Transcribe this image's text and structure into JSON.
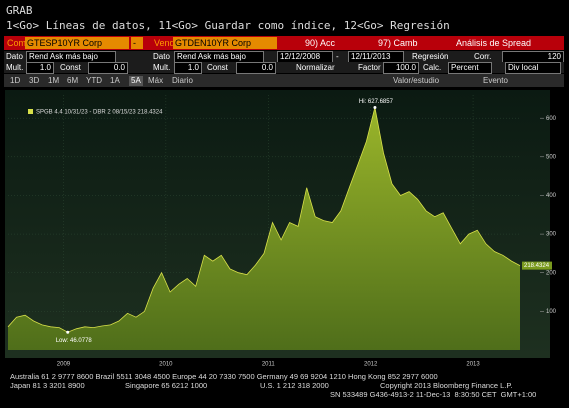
{
  "header": {
    "title": "GRAB",
    "hint": "1<Go> Líneas de datos, 11<Go> Guardar como índice, 12<Go> Regresión"
  },
  "toolbar": {
    "comp_label": "Comp",
    "comp_value": "GTESP10YR Corp",
    "dash": "-",
    "vend_label": "Vend",
    "vend_value": "GTDEN10YR Corp",
    "button_acc": "90) Acc",
    "button_camb": "97) Camb",
    "title": "Análisis de Spread"
  },
  "settings": {
    "dato1_label": "Dato",
    "dato1_value": "Rend Ask más bajo",
    "dato2_label": "Dato",
    "dato2_value": "Rend Ask más bajo",
    "start_date": "12/12/2008",
    "date_dash": "-",
    "end_date": "12/11/2013",
    "regresion": "Regresión",
    "corr": "Corr.",
    "corr_value": "120",
    "mult1_label": "Mult.",
    "mult1_value": "1.0",
    "const1_label": "Const",
    "const1_value": "0.0",
    "mult2_label": "Mult.",
    "mult2_value": "1.0",
    "const2_label": "Const",
    "const2_value": "0.0",
    "normalizar": "Normalizar",
    "factor_label": "Factor",
    "factor_value": "100.0",
    "calc_label": "Calc.",
    "calc_value": "Percent",
    "div_local": "Div local"
  },
  "tabs": [
    "1D",
    "3D",
    "1M",
    "6M",
    "YTD",
    "1A",
    "5A",
    "Máx",
    "Diario"
  ],
  "tab_right": [
    "Valor/estudio",
    "Evento"
  ],
  "chart": {
    "type": "area",
    "legend": "SPGB 4.4 10/31/23 - DBR 2 08/15/23 218.4324",
    "color": "#7a9a1e",
    "line_color": "#d8e04a",
    "values": [
      60,
      85,
      90,
      75,
      65,
      60,
      58,
      46.0778,
      55,
      60,
      58,
      62,
      65,
      75,
      95,
      85,
      100,
      160,
      200,
      150,
      170,
      185,
      165,
      245,
      230,
      245,
      210,
      200,
      195,
      220,
      250,
      330,
      285,
      330,
      320,
      420,
      345,
      335,
      330,
      360,
      420,
      480,
      540,
      627.6857,
      510,
      430,
      400,
      410,
      390,
      360,
      345,
      355,
      315,
      275,
      300,
      310,
      275,
      255,
      245,
      230,
      218.4324
    ],
    "last_label": "218.4324",
    "high": {
      "index": 43,
      "label": "Hi: 627.6857"
    },
    "low": {
      "index": 7,
      "label": "Low: 46.0778"
    },
    "xlim": [
      0,
      60
    ],
    "xticks": [
      {
        "value": 6.5,
        "label": "2009"
      },
      {
        "value": 18.5,
        "label": "2010"
      },
      {
        "value": 30.5,
        "label": "2011"
      },
      {
        "value": 42.5,
        "label": "2012"
      },
      {
        "value": 54.5,
        "label": "2013"
      }
    ],
    "ylim": [
      0,
      660
    ],
    "yticks": [
      100,
      200,
      300,
      400,
      500,
      600
    ]
  },
  "footer": {
    "line1": "Australia 61 2 9777 8600 Brazil 5511 3048 4500 Europe 44 20 7330 7500 Germany 49 69 9204 1210 Hong Kong 852 2977 6000",
    "line2_left": "Japan 81 3 3201 8900",
    "line2_mid1": "Singapore 65 6212 1000",
    "line2_mid2": "U.S. 1 212 318 2000",
    "line2_right": "Copyright 2013 Bloomberg Finance L.P.",
    "line3": "SN 533489 G436-4913-2 11-Dec-13  8:30:50 CET  GMT+1:00"
  }
}
